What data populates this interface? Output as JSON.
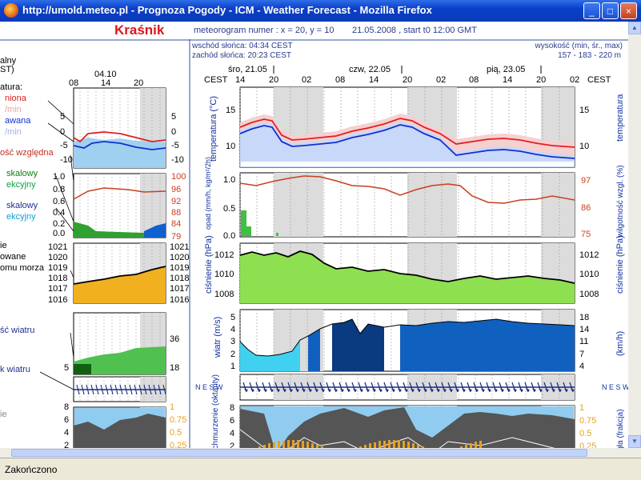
{
  "window": {
    "title": "http://umold.meteo.pl - Prognoza Pogody - ICM - Weather Forecast - Mozilla Firefox",
    "buttons": {
      "minimize": "_",
      "maximize": "□",
      "close": "×"
    }
  },
  "status": "Zakończono",
  "header": {
    "city": "Kraśnik",
    "meteogram": "meteorogram numer : x = 20, y = 10",
    "date": "21.05.2008 , start t0 12:00 GMT"
  },
  "info": {
    "sunrise": "wschód słońca: 04:34 CEST",
    "sunset": "zachód słońca: 20:23 CEST",
    "elev_label": "wysokość (min, śr., max)",
    "elev": "157 - 183 - 220 m"
  },
  "days": [
    "śro, 21.05",
    "czw, 22.05",
    "pią, 23.05"
  ],
  "hours_main": [
    "14",
    "20",
    "02",
    "08",
    "14",
    "20",
    "02",
    "08",
    "14",
    "20",
    "02"
  ],
  "tz": "CEST",
  "left": {
    "day": "04.10",
    "hours": [
      "08",
      "14",
      "20"
    ],
    "labels": {
      "l1": "alny",
      "l2": "ST)",
      "l3": "atura:",
      "l4": "niona",
      "l5": "/min",
      "l6": "awana",
      "l7": "/min",
      "l8": "ość względna",
      "l9": "skalowy",
      "l10": "ekcyjny",
      "l11": "skalowy",
      "l12": "ekcyjny",
      "l13": "ie",
      "l14": "owane",
      "l15": "omu morza",
      "l16": "ść wiatru",
      "l17": "k wiatru",
      "l18": "ie",
      "l19": "ie"
    },
    "temp_left_ticks": [
      "5",
      "0",
      "-5",
      "-10"
    ],
    "temp_right_ticks": [
      "5",
      "0",
      "-5",
      "-10"
    ],
    "hum_left_ticks": [
      "1.0",
      "0.8",
      "0.6",
      "0.4",
      "0.2",
      "0.0"
    ],
    "hum_right_ticks": [
      "100",
      "96",
      "92",
      "88",
      "84",
      "79"
    ],
    "pres_left_ticks": [
      "1021",
      "1020",
      "1019",
      "1018",
      "1017",
      "1016"
    ],
    "pres_right_ticks": [
      "1021",
      "1020",
      "1019",
      "1018",
      "1017",
      "1016"
    ],
    "wind_left_ticks": [
      "5"
    ],
    "wind_right_ticks": [
      "36",
      "18"
    ],
    "cloud_left_ticks": [
      "8",
      "6",
      "4",
      "2",
      "0"
    ],
    "cloud_right_ticks": [
      "1",
      "0.75",
      "0.5",
      "0.25",
      "0"
    ]
  },
  "panels": {
    "temp": {
      "ylabel": "temperatura (°C)",
      "rlabel": "temperatura",
      "ticks": [
        "15",
        "10"
      ]
    },
    "precip": {
      "ylabel": "opad (mm/h, kg/m²/2h)",
      "rlabel": "wilgotność wzgl. (%)",
      "left_ticks": [
        "1.0",
        "0.5",
        "0.0"
      ],
      "right_ticks": [
        "97",
        "86",
        "75"
      ]
    },
    "pressure": {
      "ylabel": "ciśnienie (hPa)",
      "rlabel": "ciśnienie (hPa)",
      "ticks": [
        "1012",
        "1010",
        "1008"
      ]
    },
    "wind": {
      "ylabel": "wiatr (m/s)",
      "rlabel": "(km/h)",
      "left_ticks": [
        "5",
        "4",
        "3",
        "2",
        "1"
      ],
      "right_ticks": [
        "18",
        "14",
        "11",
        "7",
        "4"
      ]
    },
    "winddir": {
      "compass": "N E S W"
    },
    "clouds": {
      "ylabel": "zachmurzenie (oktanty)",
      "rlabel": "mgła (frakcja)",
      "left_ticks": [
        "8",
        "6",
        "4",
        "2",
        "0"
      ],
      "right_ticks": [
        "1",
        "0.75",
        "0.5",
        "0.25",
        "0"
      ]
    }
  },
  "colors": {
    "temp_red": "#e02020",
    "temp_blue": "#1030d0",
    "green": "#7ee03c",
    "shade": "#d8d8d8"
  }
}
